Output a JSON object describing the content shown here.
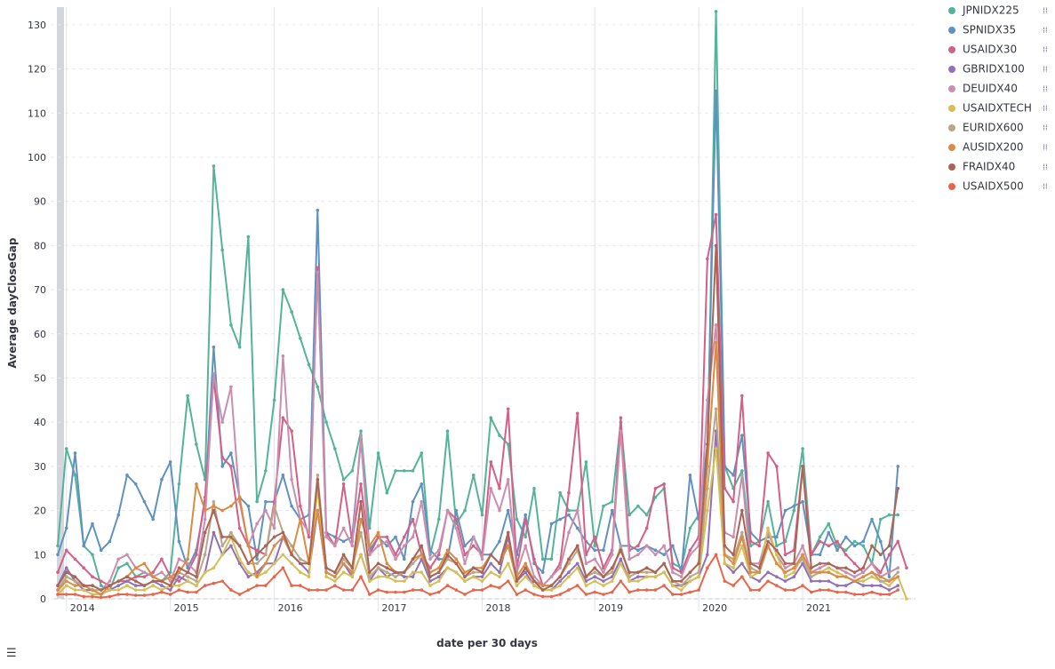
{
  "chart_data": {
    "type": "line",
    "y_label": "Average dayCloseGap",
    "x_label": "date per 30 days",
    "categories": [
      null,
      "2014",
      null,
      null,
      null,
      null,
      null,
      null,
      null,
      null,
      null,
      null,
      null,
      "2015",
      null,
      null,
      null,
      null,
      null,
      null,
      null,
      null,
      null,
      null,
      null,
      "2016",
      null,
      null,
      null,
      null,
      null,
      null,
      null,
      null,
      null,
      null,
      null,
      "2017",
      null,
      null,
      null,
      null,
      null,
      null,
      null,
      null,
      null,
      null,
      null,
      "2018",
      null,
      null,
      null,
      null,
      null,
      null,
      null,
      null,
      null,
      null,
      null,
      null,
      "2019",
      null,
      null,
      null,
      null,
      null,
      null,
      null,
      null,
      null,
      null,
      null,
      "2020",
      null,
      null,
      null,
      null,
      null,
      null,
      null,
      null,
      null,
      null,
      null,
      "2021",
      null,
      null,
      null,
      null,
      null,
      null,
      null,
      null,
      null,
      null,
      null,
      null
    ],
    "ylim": [
      0,
      134
    ],
    "yticks": [
      0,
      10,
      20,
      30,
      40,
      50,
      60,
      70,
      80,
      90,
      100,
      110,
      120,
      130
    ],
    "grid": true,
    "legend": "right",
    "series": [
      {
        "name": "JPNIDX225",
        "color": "#54b399",
        "values": [
          12,
          34,
          28,
          12,
          10,
          3,
          2,
          7,
          8,
          5,
          6,
          5,
          4,
          6,
          26,
          46,
          35,
          27,
          98,
          79,
          62,
          57,
          82,
          22,
          29,
          45,
          70,
          65,
          59,
          53,
          48,
          40,
          34,
          27,
          29,
          38,
          16,
          33,
          24,
          29,
          29,
          29,
          33,
          10,
          18,
          38,
          17,
          20,
          28,
          19,
          41,
          37,
          35,
          18,
          14,
          25,
          9,
          9,
          24,
          20,
          20,
          31,
          12,
          21,
          22,
          40,
          19,
          21,
          19,
          23,
          25,
          8,
          7,
          16,
          19,
          30,
          133,
          30,
          25,
          29,
          12,
          13,
          22,
          12,
          13,
          20,
          34,
          10,
          14,
          17,
          12,
          11,
          13,
          12,
          8,
          18,
          19,
          19,
          null
        ]
      },
      {
        "name": "SPNIDX35",
        "color": "#6092c0",
        "values": [
          10,
          16,
          33,
          12,
          17,
          11,
          13,
          19,
          28,
          26,
          22,
          18,
          27,
          31,
          13,
          7,
          11,
          22,
          57,
          30,
          33,
          23,
          21,
          9,
          22,
          22,
          28,
          21,
          18,
          19,
          88,
          15,
          14,
          13,
          14,
          36,
          11,
          14,
          12,
          14,
          9,
          22,
          26,
          11,
          9,
          9,
          20,
          12,
          14,
          10,
          10,
          13,
          20,
          10,
          19,
          8,
          6,
          17,
          18,
          19,
          16,
          13,
          11,
          11,
          20,
          12,
          12,
          11,
          12,
          11,
          10,
          12,
          6,
          28,
          18,
          35,
          115,
          30,
          28,
          37,
          15,
          13,
          14,
          14,
          20,
          21,
          22,
          10,
          10,
          15,
          11,
          14,
          12,
          13,
          18,
          13,
          5,
          30,
          null
        ]
      },
      {
        "name": "USAIDX30",
        "color": "#d36086",
        "values": [
          6,
          11,
          9,
          7,
          5,
          4,
          3,
          4,
          4,
          5,
          5,
          6,
          9,
          5,
          4,
          6,
          10,
          23,
          50,
          32,
          30,
          16,
          12,
          11,
          10,
          22,
          41,
          38,
          21,
          14,
          75,
          15,
          12,
          26,
          13,
          26,
          10,
          14,
          14,
          10,
          14,
          18,
          10,
          7,
          10,
          20,
          18,
          10,
          12,
          10,
          31,
          25,
          43,
          7,
          18,
          9,
          3,
          5,
          8,
          24,
          42,
          10,
          14,
          7,
          11,
          41,
          11,
          12,
          16,
          25,
          26,
          7,
          6,
          11,
          14,
          77,
          87,
          25,
          22,
          46,
          13,
          12,
          33,
          30,
          10,
          11,
          30,
          10,
          13,
          12,
          13,
          10,
          8,
          6,
          8,
          6,
          10,
          13,
          7
        ]
      },
      {
        "name": "GBRIDX100",
        "color": "#9170b8",
        "values": [
          3,
          7,
          4,
          2,
          2,
          1,
          2,
          3,
          4,
          3,
          3,
          4,
          3,
          2,
          5,
          4,
          3,
          6,
          15,
          10,
          12,
          8,
          5,
          6,
          8,
          8,
          14,
          10,
          8,
          6,
          20,
          6,
          5,
          8,
          5,
          10,
          4,
          7,
          5,
          6,
          5,
          5,
          9,
          4,
          5,
          7,
          6,
          4,
          5,
          5,
          8,
          6,
          14,
          4,
          6,
          3,
          2,
          2,
          4,
          6,
          8,
          4,
          5,
          4,
          5,
          9,
          4,
          5,
          5,
          5,
          6,
          3,
          3,
          4,
          5,
          10,
          38,
          8,
          6,
          8,
          5,
          4,
          6,
          5,
          4,
          5,
          8,
          4,
          4,
          4,
          3,
          3,
          4,
          3,
          3,
          3,
          2,
          3,
          null
        ]
      },
      {
        "name": "DEUIDX40",
        "color": "#ca8eae",
        "values": [
          2,
          5,
          4,
          3,
          3,
          2,
          4,
          9,
          10,
          7,
          6,
          5,
          6,
          4,
          9,
          8,
          6,
          18,
          51,
          40,
          48,
          22,
          12,
          17,
          20,
          16,
          55,
          27,
          18,
          15,
          74,
          14,
          12,
          16,
          12,
          37,
          10,
          12,
          13,
          9,
          12,
          14,
          22,
          9,
          11,
          20,
          16,
          8,
          14,
          9,
          25,
          20,
          27,
          6,
          12,
          5,
          3,
          5,
          7,
          15,
          20,
          8,
          9,
          6,
          10,
          38,
          9,
          10,
          12,
          10,
          12,
          6,
          5,
          10,
          12,
          45,
          62,
          15,
          14,
          28,
          8,
          8,
          15,
          10,
          7,
          8,
          12,
          6,
          7,
          8,
          7,
          6,
          5,
          6,
          8,
          5,
          6,
          7,
          null
        ]
      },
      {
        "name": "USAIDXTECH",
        "color": "#d6bf57",
        "values": [
          1,
          3,
          2,
          2,
          1,
          1,
          2,
          2,
          3,
          2,
          2,
          3,
          2,
          3,
          3,
          4,
          3,
          6,
          7,
          10,
          14,
          9,
          6,
          5,
          6,
          8,
          10,
          8,
          6,
          5,
          25,
          5,
          4,
          6,
          5,
          10,
          4,
          5,
          5,
          4,
          4,
          6,
          6,
          3,
          4,
          7,
          6,
          4,
          5,
          4,
          6,
          5,
          8,
          3,
          5,
          3,
          2,
          2,
          3,
          5,
          7,
          3,
          4,
          3,
          4,
          8,
          4,
          4,
          5,
          5,
          6,
          3,
          2,
          4,
          5,
          20,
          34,
          8,
          7,
          12,
          5,
          6,
          16,
          10,
          5,
          6,
          10,
          6,
          6,
          7,
          6,
          5,
          4,
          4,
          5,
          4,
          3,
          5,
          0
        ]
      },
      {
        "name": "EURIDX600",
        "color": "#b9a888",
        "values": [
          2,
          5,
          4,
          3,
          2,
          2,
          3,
          4,
          5,
          4,
          3,
          4,
          4,
          3,
          6,
          5,
          4,
          10,
          22,
          12,
          15,
          12,
          8,
          8,
          10,
          21,
          15,
          12,
          9,
          8,
          28,
          7,
          6,
          9,
          7,
          15,
          5,
          7,
          6,
          5,
          6,
          8,
          10,
          5,
          6,
          9,
          8,
          5,
          6,
          6,
          10,
          8,
          12,
          4,
          7,
          4,
          3,
          3,
          5,
          8,
          11,
          5,
          6,
          5,
          6,
          12,
          5,
          6,
          6,
          6,
          8,
          4,
          3,
          5,
          6,
          25,
          43,
          10,
          9,
          15,
          7,
          6,
          12,
          8,
          6,
          7,
          9,
          5,
          6,
          6,
          5,
          5,
          4,
          5,
          6,
          4,
          4,
          6,
          null
        ]
      },
      {
        "name": "AUSIDX200",
        "color": "#da8b45",
        "values": [
          2,
          4,
          3,
          3,
          2,
          1,
          3,
          4,
          5,
          7,
          8,
          5,
          4,
          5,
          6,
          9,
          26,
          20,
          21,
          20,
          21,
          23,
          12,
          5,
          8,
          12,
          14,
          10,
          18,
          8,
          20,
          6,
          5,
          8,
          6,
          18,
          12,
          15,
          8,
          6,
          6,
          9,
          10,
          6,
          7,
          11,
          9,
          6,
          7,
          7,
          10,
          8,
          12,
          5,
          8,
          4,
          3,
          3,
          5,
          9,
          12,
          5,
          7,
          5,
          7,
          11,
          6,
          6,
          7,
          6,
          8,
          4,
          4,
          6,
          8,
          30,
          58,
          10,
          8,
          14,
          6,
          6,
          12,
          8,
          6,
          7,
          10,
          6,
          6,
          6,
          5,
          5,
          4,
          5,
          6,
          5,
          4,
          5,
          null
        ]
      },
      {
        "name": "FRAIDX40",
        "color": "#aa6556",
        "values": [
          3,
          6,
          5,
          3,
          3,
          2,
          3,
          4,
          5,
          4,
          3,
          4,
          4,
          3,
          7,
          6,
          5,
          15,
          20,
          14,
          14,
          12,
          8,
          10,
          12,
          14,
          15,
          10,
          8,
          8,
          27,
          7,
          6,
          10,
          7,
          22,
          6,
          8,
          7,
          6,
          6,
          9,
          12,
          5,
          6,
          10,
          8,
          5,
          7,
          6,
          10,
          8,
          15,
          4,
          7,
          4,
          2,
          3,
          5,
          9,
          12,
          5,
          7,
          5,
          7,
          11,
          6,
          6,
          7,
          6,
          8,
          4,
          4,
          6,
          8,
          35,
          80,
          12,
          10,
          20,
          8,
          7,
          13,
          11,
          8,
          8,
          30,
          7,
          8,
          8,
          7,
          7,
          6,
          7,
          12,
          10,
          12,
          25,
          null
        ]
      },
      {
        "name": "USAIDX500",
        "color": "#e7664c",
        "values": [
          1,
          1,
          1,
          0.5,
          0.5,
          0.3,
          0.5,
          1,
          1,
          0.8,
          0.8,
          1,
          1.5,
          1,
          2,
          1.5,
          1.5,
          3,
          3.5,
          4,
          2,
          1,
          2,
          3,
          3,
          5,
          7,
          3,
          3,
          2,
          2,
          2,
          3,
          2,
          2,
          5,
          1,
          2,
          1.5,
          1.5,
          1.5,
          2,
          2,
          1,
          1.5,
          3,
          2,
          1,
          2,
          2,
          3,
          2.5,
          4,
          1,
          2,
          1,
          0.5,
          0.5,
          1,
          2,
          3,
          1,
          1.5,
          1,
          1.5,
          4,
          1.5,
          2,
          2,
          2,
          3,
          1,
          1,
          1.5,
          2,
          7,
          10,
          4,
          3,
          5,
          2,
          2,
          4,
          3,
          2,
          2,
          3,
          1.5,
          2,
          2,
          1.5,
          1.5,
          1,
          1,
          1.5,
          1,
          1,
          2,
          null
        ]
      }
    ]
  }
}
